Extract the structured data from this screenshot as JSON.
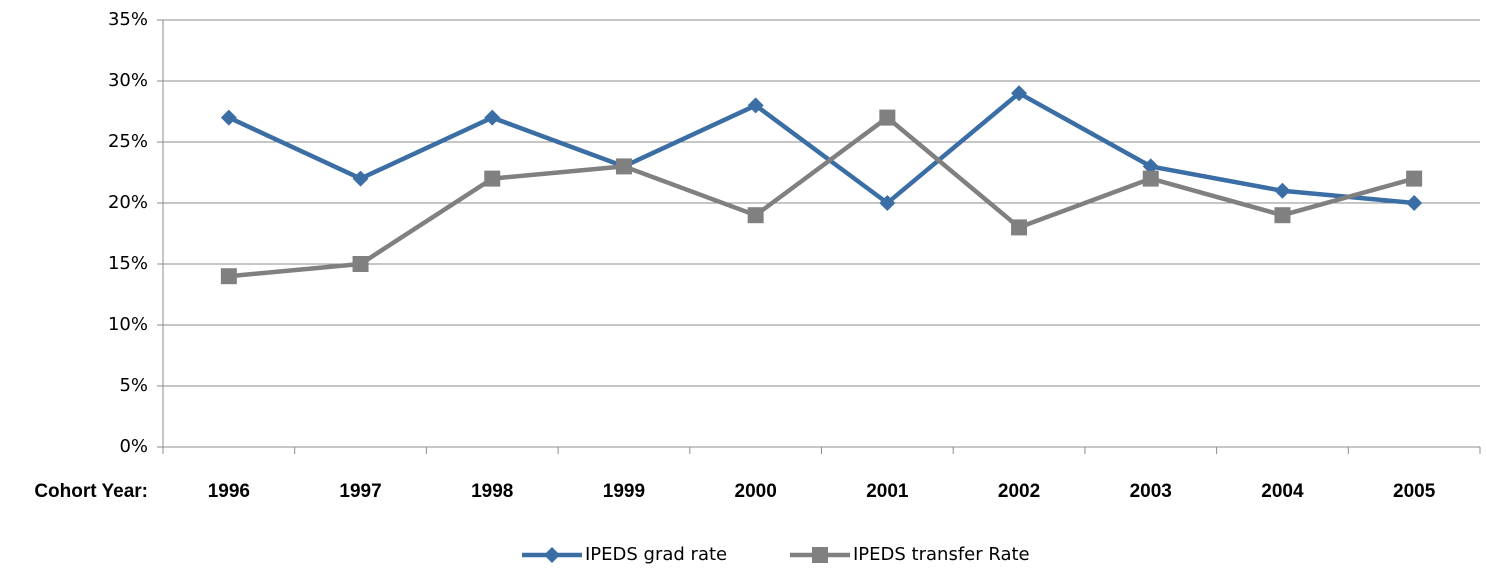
{
  "chart_data": {
    "type": "line",
    "x_label": "Cohort Year:",
    "categories": [
      "1996",
      "1997",
      "1998",
      "1999",
      "2000",
      "2001",
      "2002",
      "2003",
      "2004",
      "2005"
    ],
    "series": [
      {
        "name": "IPEDS grad rate",
        "color": "#3a6ea5",
        "marker": "diamond",
        "values": [
          27,
          22,
          27,
          23,
          28,
          20,
          29,
          23,
          21,
          20
        ]
      },
      {
        "name": "IPEDS transfer Rate",
        "color": "#808080",
        "marker": "square",
        "values": [
          14,
          15,
          22,
          23,
          19,
          27,
          18,
          22,
          19,
          22
        ]
      }
    ],
    "ylim": [
      0,
      35
    ],
    "yticks": [
      {
        "value": 0,
        "label": "0%"
      },
      {
        "value": 5,
        "label": "5%"
      },
      {
        "value": 10,
        "label": "10%"
      },
      {
        "value": 15,
        "label": "15%"
      },
      {
        "value": 20,
        "label": "20%"
      },
      {
        "value": 25,
        "label": "25%"
      },
      {
        "value": 30,
        "label": "30%"
      },
      {
        "value": 35,
        "label": "35%"
      }
    ],
    "grid": true,
    "legend": "bottom"
  }
}
